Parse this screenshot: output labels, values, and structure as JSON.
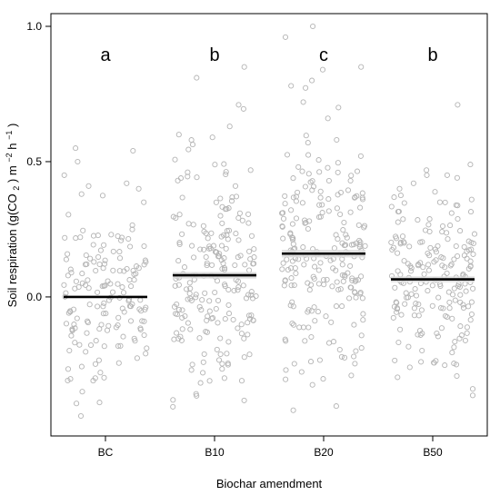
{
  "chart_data": {
    "type": "scatter",
    "subtype": "jittered strip chart with group means",
    "xlabel": "Biochar amendment",
    "ylabel": {
      "prefix": "Soil respiration (g(CO",
      "co2_subscript": "2",
      "mid": ") m",
      "exp1": "−2",
      "mid2": " h",
      "exp2": "−1",
      "suffix": ")"
    },
    "categories": [
      "BC",
      "B10",
      "B20",
      "B50"
    ],
    "significance_letters": [
      "a",
      "b",
      "c",
      "b"
    ],
    "means": [
      0.0,
      0.08,
      0.16,
      0.065
    ],
    "mean_band_halfwidth": [
      0.0,
      0.012,
      0.014,
      0.011
    ],
    "y_ticks": [
      "0.0",
      "0.5",
      "1.0"
    ],
    "ylim": [
      -0.45,
      1.0
    ],
    "point_color": "#b4b4b4",
    "mean_color": "#000000",
    "band_color": "#dcdcdc",
    "grid": false,
    "legend": "none",
    "groups": [
      {
        "name": "BC",
        "spread_sd": 0.15,
        "n": 150,
        "notable_points": [
          0.55,
          0.54,
          0.5,
          0.45,
          0.42,
          0.41,
          0.4,
          0.38,
          0.35,
          -0.3,
          -0.35,
          -0.39,
          -0.44
        ]
      },
      {
        "name": "B10",
        "spread_sd": 0.19,
        "n": 200,
        "notable_points": [
          0.85,
          0.81,
          0.71,
          0.63,
          0.6,
          0.59,
          0.58,
          -0.25,
          -0.27,
          -0.28,
          -0.3
        ]
      },
      {
        "name": "B20",
        "spread_sd": 0.22,
        "n": 220,
        "notable_points": [
          1.0,
          0.96,
          0.85,
          0.84,
          0.8,
          0.78,
          0.72,
          0.7,
          0.66,
          -0.17,
          -0.2,
          -0.22,
          -0.27
        ]
      },
      {
        "name": "B50",
        "spread_sd": 0.17,
        "n": 190,
        "notable_points": [
          0.71,
          0.45,
          0.44,
          0.42,
          0.4,
          0.36,
          0.35,
          -0.24,
          -0.25,
          -0.34
        ]
      }
    ]
  }
}
